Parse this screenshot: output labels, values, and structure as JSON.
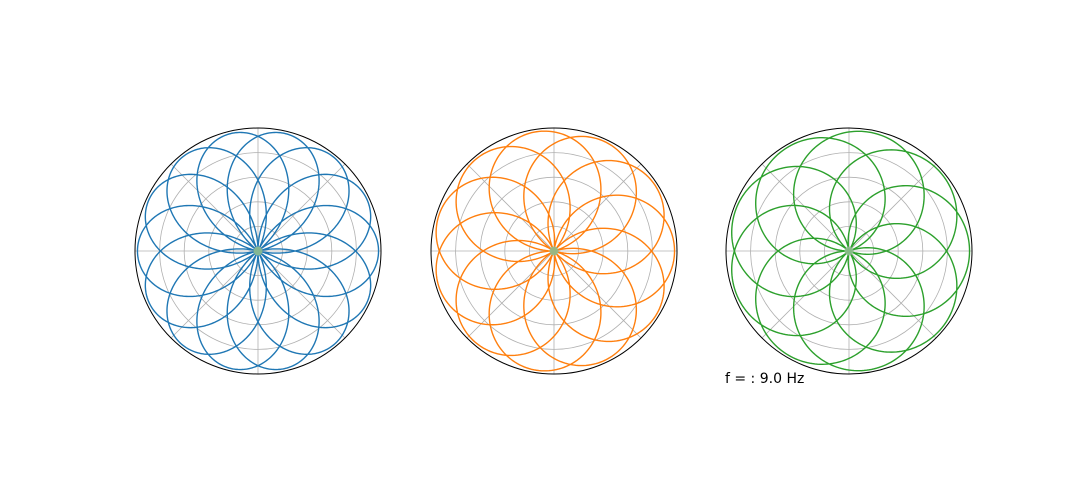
{
  "caption": {
    "prefix": "f = : ",
    "value": "9.0",
    "unit": " Hz"
  },
  "chart_data": [
    {
      "type": "polar-line",
      "series": [
        {
          "color": "#1f77b4",
          "k": 1.4,
          "theta_max_turns": 5
        }
      ],
      "center_marker": {
        "color": "#8fbc8f"
      },
      "grid": true,
      "radial_ticks": "hidden",
      "angular_ticks": "hidden",
      "rlim": [
        0,
        1
      ]
    },
    {
      "type": "polar-line",
      "series": [
        {
          "color": "#ff7f0e",
          "k": 1.1,
          "theta_max_turns": 10
        }
      ],
      "center_marker": {
        "color": "#8fbc8f"
      },
      "grid": true,
      "radial_ticks": "hidden",
      "angular_ticks": "hidden",
      "rlim": [
        0,
        1
      ]
    },
    {
      "type": "polar-line",
      "series": [
        {
          "color": "#2ca02c",
          "k": 0.9,
          "theta_max_turns": 10
        }
      ],
      "center_marker": {
        "color": "#8fbc8f"
      },
      "grid": true,
      "radial_ticks": "hidden",
      "angular_ticks": "hidden",
      "rlim": [
        0,
        1
      ]
    }
  ]
}
